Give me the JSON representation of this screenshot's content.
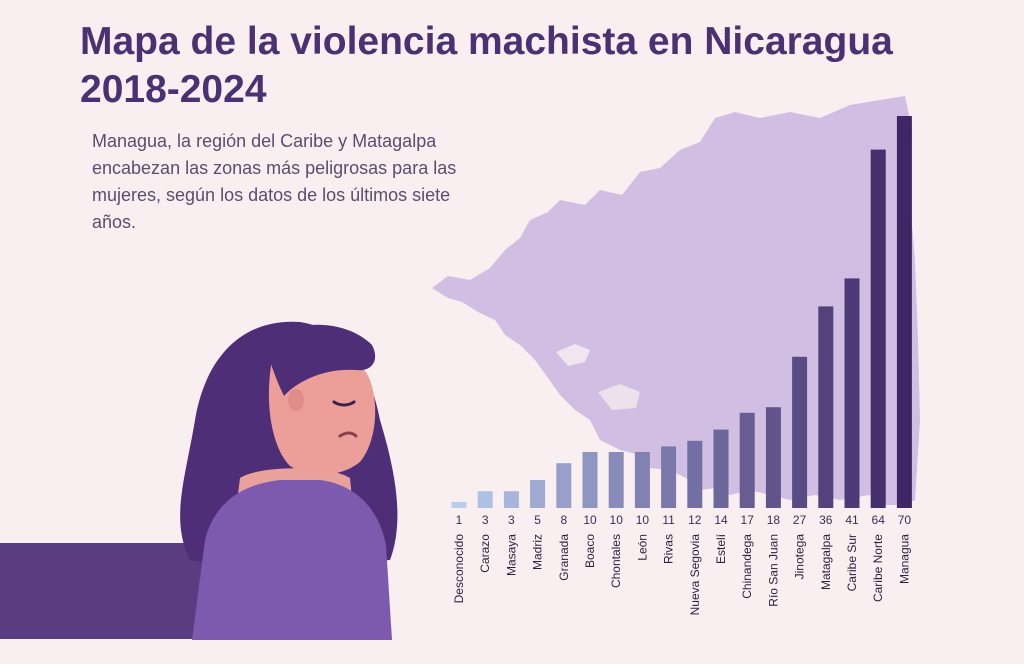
{
  "header": {
    "title": "Mapa de la violencia machista en Nicaragua 2018-2024",
    "subtitle": "Managua, la región del Caribe y Matagalpa encabezan las zonas más peligrosas para las mujeres, según los datos de los últimos siete años."
  },
  "colors": {
    "background": "#f9eff1",
    "title": "#4a3272",
    "map": "#c9b6df",
    "bar_light": "#b9cdf0",
    "bar_dark": "#3f2766"
  },
  "illustration": {
    "icon": "sad-woman-illustration"
  },
  "chart_data": {
    "type": "bar",
    "categories": [
      "Desconocido",
      "Carazo",
      "Masaya",
      "Madriz",
      "Granada",
      "Boaco",
      "Chontales",
      "León",
      "Rivas",
      "Nueva Segovia",
      "Estelí",
      "Chinandega",
      "Río San Juan",
      "Jinotega",
      "Matagalpa",
      "Caribe Sur",
      "Caribe Norte",
      "Managua"
    ],
    "values": [
      1,
      3,
      3,
      5,
      8,
      10,
      10,
      10,
      11,
      12,
      14,
      17,
      18,
      27,
      36,
      41,
      64,
      70
    ],
    "title": "Mapa de la violencia machista en Nicaragua 2018-2024",
    "xlabel": "",
    "ylabel": "",
    "grid": false,
    "legend": "none"
  }
}
